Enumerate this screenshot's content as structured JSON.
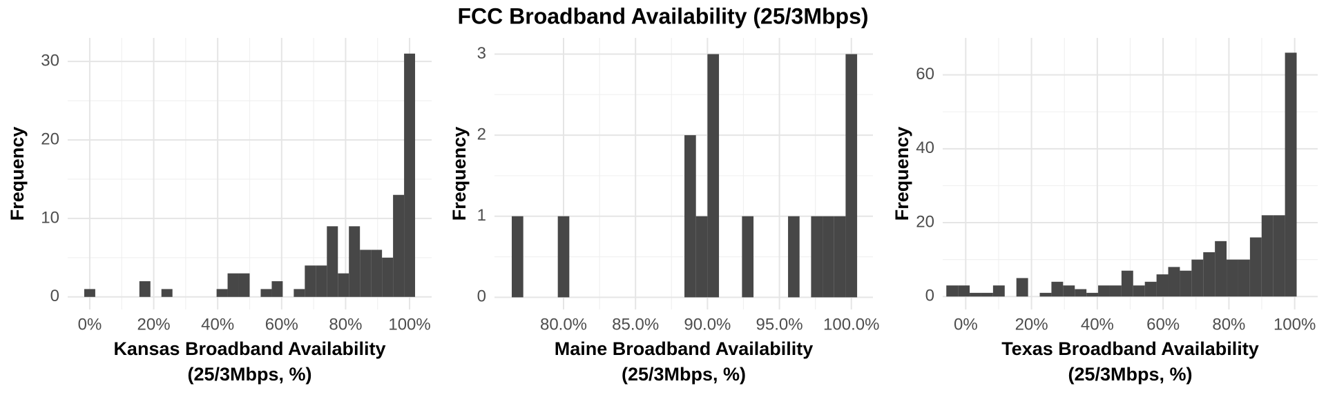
{
  "title": "FCC Broadband Availability (25/3Mbps)",
  "chart_data": [
    {
      "type": "histogram",
      "color": "#474747",
      "grid": true,
      "xlabel": [
        "Kansas Broadband Availability",
        "(25/3Mbps, %)"
      ],
      "ylabel": "Frequency",
      "bins": [
        -1.72,
        1.72,
        5.17,
        8.62,
        12.07,
        15.52,
        18.97,
        22.41,
        25.86,
        29.31,
        32.76,
        36.21,
        39.66,
        43.1,
        46.55,
        50,
        53.45,
        56.9,
        60.34,
        63.79,
        67.24,
        70.69,
        74.14,
        77.59,
        81.03,
        84.48,
        87.93,
        91.38,
        94.83,
        98.28,
        101.72
      ],
      "values": [
        1,
        0,
        0,
        0,
        0,
        2,
        0,
        1,
        0,
        0,
        0,
        0,
        1,
        3,
        3,
        0,
        1,
        2,
        0,
        1,
        4,
        4,
        9,
        3,
        9,
        6,
        6,
        5,
        13,
        31
      ],
      "xlim": [
        -6.9,
        106.9
      ],
      "ylim": [
        -1.6,
        33
      ],
      "xticks": [
        {
          "value": 0,
          "label": "0%"
        },
        {
          "value": 20,
          "label": "20%"
        },
        {
          "value": 40,
          "label": "40%"
        },
        {
          "value": 60,
          "label": "60%"
        },
        {
          "value": 80,
          "label": "80%"
        },
        {
          "value": 100,
          "label": "100%"
        }
      ],
      "yticks": [
        0,
        10,
        20,
        30
      ]
    },
    {
      "type": "histogram",
      "color": "#474747",
      "grid": true,
      "xlabel": [
        "Maine Broadband Availability",
        "(25/3Mbps, %)"
      ],
      "ylabel": "Frequency",
      "bins": [
        76.4,
        77.2,
        78,
        78.8,
        79.6,
        80.4,
        81.2,
        82,
        82.8,
        83.6,
        84.4,
        85.2,
        86,
        86.8,
        87.6,
        88.4,
        89.2,
        90,
        90.8,
        91.6,
        92.4,
        93.2,
        94,
        94.8,
        95.6,
        96.4,
        97.2,
        98,
        98.8,
        99.6,
        100.4
      ],
      "values": [
        1,
        0,
        0,
        0,
        1,
        0,
        0,
        0,
        0,
        0,
        0,
        0,
        0,
        0,
        0,
        2,
        1,
        3,
        0,
        0,
        1,
        0,
        0,
        0,
        1,
        0,
        1,
        1,
        1,
        3
      ],
      "xlim": [
        75.2,
        101.5
      ],
      "ylim": [
        -0.15,
        3.2
      ],
      "xticks": [
        {
          "value": 80,
          "label": "80.0%"
        },
        {
          "value": 85,
          "label": "85.0%"
        },
        {
          "value": 90,
          "label": "90.0%"
        },
        {
          "value": 95,
          "label": "95.0%"
        },
        {
          "value": 100,
          "label": "100.0%"
        }
      ],
      "yticks": [
        0,
        1,
        2,
        3
      ]
    },
    {
      "type": "histogram",
      "color": "#474747",
      "grid": true,
      "xlabel": [
        "Texas Broadband Availability",
        "(25/3Mbps, %)"
      ],
      "ylabel": "Frequency",
      "bins": [
        -5.9,
        -2.35,
        1.2,
        4.75,
        8.3,
        11.85,
        15.4,
        18.95,
        22.5,
        26.05,
        29.6,
        33.15,
        36.7,
        40.25,
        43.8,
        47.35,
        50.9,
        54.45,
        58,
        61.55,
        65.1,
        68.65,
        72.2,
        75.75,
        79.3,
        82.85,
        86.4,
        89.95,
        93.5,
        97.05,
        100.6
      ],
      "values": [
        3,
        3,
        1,
        1,
        3,
        0,
        5,
        0,
        1,
        4,
        3,
        2,
        1,
        3,
        3,
        7,
        3,
        4,
        6,
        8,
        7,
        10,
        12,
        15,
        10,
        10,
        16,
        22,
        22,
        66
      ],
      "xlim": [
        -7,
        107
      ],
      "ylim": [
        -3.5,
        70
      ],
      "xticks": [
        {
          "value": 0,
          "label": "0%"
        },
        {
          "value": 20,
          "label": "20%"
        },
        {
          "value": 40,
          "label": "40%"
        },
        {
          "value": 60,
          "label": "60%"
        },
        {
          "value": 80,
          "label": "80%"
        },
        {
          "value": 100,
          "label": "100%"
        }
      ],
      "yticks": [
        0,
        20,
        40,
        60
      ]
    }
  ]
}
